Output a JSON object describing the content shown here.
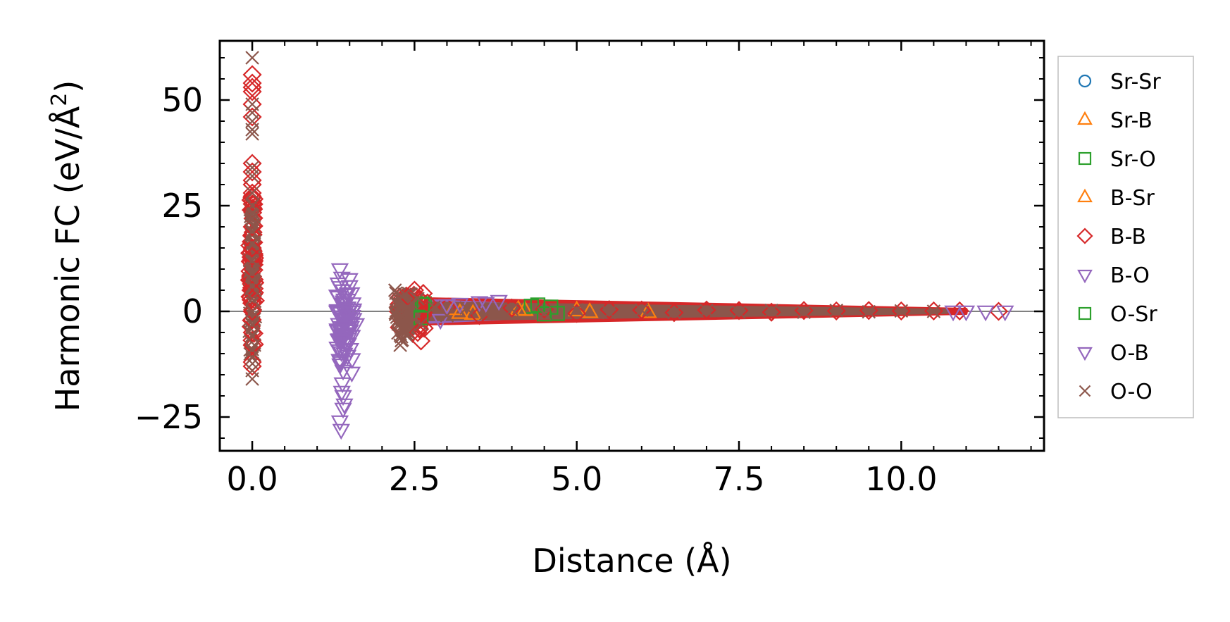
{
  "chart_data": {
    "type": "scatter",
    "title": "",
    "xlabel": "Distance (Å)",
    "ylabel_main": "Harmonic FC (eV/Å",
    "ylabel_sup": "2",
    "ylabel_close": ")",
    "xlim": [
      -0.5,
      12.2
    ],
    "ylim": [
      -33,
      64
    ],
    "xticks": [
      0.0,
      2.5,
      5.0,
      7.5,
      10.0
    ],
    "xtick_labels": [
      "0.0",
      "2.5",
      "5.0",
      "7.5",
      "10.0"
    ],
    "yticks": [
      -25,
      0,
      25,
      50
    ],
    "ytick_labels": [
      "−25",
      "0",
      "25",
      "50"
    ],
    "x_minor_step": 0.5,
    "y_minor_step": 5,
    "zero_line": 0,
    "legend_position": "outside-right",
    "series": [
      {
        "name": "Sr-Sr",
        "marker": "circle",
        "color": "#1f77b4",
        "points": []
      },
      {
        "name": "Sr-B",
        "marker": "triangle-up",
        "color": "#ff7f0e",
        "points": [
          [
            3.1,
            0.5
          ],
          [
            3.4,
            -0.6
          ],
          [
            4.2,
            0.3
          ],
          [
            5.0,
            0.2
          ],
          [
            6.1,
            -0.2
          ]
        ]
      },
      {
        "name": "Sr-O",
        "marker": "square",
        "color": "#2ca02c",
        "points": [
          [
            2.6,
            -1.5
          ],
          [
            2.65,
            1.8
          ],
          [
            4.3,
            1.2
          ],
          [
            4.5,
            -0.6
          ],
          [
            4.6,
            1.0
          ]
        ]
      },
      {
        "name": "B-Sr",
        "marker": "triangle-up",
        "color": "#ff7f0e",
        "points": [
          [
            3.2,
            -0.4
          ],
          [
            4.1,
            0.4
          ],
          [
            5.2,
            -0.2
          ]
        ]
      },
      {
        "name": "B-B",
        "marker": "diamond",
        "color": "#d62728",
        "points": [
          [
            0,
            56
          ],
          [
            0,
            54
          ],
          [
            0,
            53
          ],
          [
            0,
            52
          ],
          [
            0,
            49
          ],
          [
            0,
            46
          ],
          [
            0,
            35
          ],
          [
            0,
            33
          ],
          [
            0,
            31
          ],
          [
            0,
            30
          ],
          [
            0,
            28
          ],
          [
            0,
            26
          ],
          [
            0,
            24
          ],
          [
            0,
            20
          ],
          [
            0,
            15
          ],
          [
            0,
            13
          ],
          [
            0,
            10
          ],
          [
            0,
            7
          ],
          [
            0,
            5
          ],
          [
            0,
            3
          ],
          [
            0,
            0
          ],
          [
            0,
            -2
          ],
          [
            0,
            -5
          ],
          [
            0,
            -8
          ],
          [
            0,
            -12
          ],
          [
            0,
            -13
          ],
          [
            2.4,
            3.5
          ],
          [
            2.5,
            5
          ],
          [
            2.55,
            -5
          ],
          [
            2.6,
            -7
          ],
          [
            2.65,
            -4
          ],
          [
            2.7,
            2
          ],
          [
            3.0,
            1
          ],
          [
            3.5,
            -1
          ],
          [
            4.0,
            0.8
          ],
          [
            4.5,
            0.5
          ],
          [
            5.0,
            -0.5
          ],
          [
            5.5,
            0.4
          ],
          [
            6.0,
            0.3
          ],
          [
            6.5,
            -0.3
          ],
          [
            7.0,
            0.3
          ],
          [
            7.5,
            0.2
          ],
          [
            8.0,
            -0.2
          ],
          [
            8.5,
            0.2
          ],
          [
            9.0,
            0.1
          ],
          [
            9.5,
            0.2
          ],
          [
            10.0,
            0.1
          ],
          [
            10.5,
            0.1
          ],
          [
            10.9,
            0.1
          ],
          [
            11.5,
            0
          ]
        ]
      },
      {
        "name": "B-O",
        "marker": "triangle-down",
        "color": "#9467bd",
        "points": [
          [
            1.35,
            10
          ],
          [
            1.38,
            8
          ],
          [
            1.4,
            5
          ],
          [
            1.42,
            2
          ],
          [
            1.45,
            -1
          ],
          [
            1.4,
            -4
          ],
          [
            1.38,
            -7
          ],
          [
            1.42,
            -10
          ],
          [
            1.4,
            -14
          ],
          [
            1.38,
            -19
          ],
          [
            1.4,
            -20
          ],
          [
            1.42,
            -22
          ],
          [
            1.4,
            -23
          ],
          [
            1.35,
            -26
          ],
          [
            1.37,
            -28
          ],
          [
            1.5,
            6
          ],
          [
            1.55,
            0
          ],
          [
            1.6,
            -3
          ],
          [
            3.0,
            1.5
          ],
          [
            3.5,
            2.2
          ],
          [
            3.8,
            2.5
          ],
          [
            2.9,
            -2
          ],
          [
            11.0,
            0
          ],
          [
            11.3,
            0
          ],
          [
            11.6,
            0
          ],
          [
            10.8,
            0
          ]
        ]
      },
      {
        "name": "O-Sr",
        "marker": "square",
        "color": "#2ca02c",
        "points": [
          [
            2.62,
            1.5
          ],
          [
            4.4,
            1.5
          ],
          [
            4.7,
            -0.5
          ]
        ]
      },
      {
        "name": "O-B",
        "marker": "triangle-down",
        "color": "#9467bd",
        "points": [
          [
            1.36,
            -12
          ],
          [
            1.44,
            4
          ],
          [
            1.39,
            -17
          ],
          [
            3.2,
            1.8
          ],
          [
            3.6,
            2
          ]
        ]
      },
      {
        "name": "O-O",
        "marker": "x",
        "color": "#8c564b",
        "points": [
          [
            0,
            60
          ],
          [
            0,
            49
          ],
          [
            0,
            47
          ],
          [
            0,
            45
          ],
          [
            0,
            43
          ],
          [
            0,
            42
          ],
          [
            0,
            34
          ],
          [
            0,
            32
          ],
          [
            0,
            28
          ],
          [
            0,
            25
          ],
          [
            0,
            22
          ],
          [
            0,
            19
          ],
          [
            0,
            16
          ],
          [
            0,
            12
          ],
          [
            0,
            9
          ],
          [
            0,
            6
          ],
          [
            0,
            3
          ],
          [
            0,
            0
          ],
          [
            0,
            -3
          ],
          [
            0,
            -6
          ],
          [
            0,
            -9
          ],
          [
            0,
            -11
          ],
          [
            0,
            -14
          ],
          [
            0,
            -16
          ],
          [
            2.2,
            5
          ],
          [
            2.25,
            3
          ],
          [
            2.3,
            0
          ],
          [
            2.25,
            -3
          ],
          [
            2.3,
            -6
          ],
          [
            2.28,
            -8
          ],
          [
            2.35,
            4
          ],
          [
            2.4,
            -5
          ],
          [
            2.45,
            2
          ],
          [
            2.5,
            -2
          ],
          [
            2.55,
            3
          ],
          [
            2.6,
            -3
          ],
          [
            2.8,
            1
          ],
          [
            3.0,
            -1
          ],
          [
            3.3,
            0.8
          ],
          [
            3.6,
            -0.6
          ],
          [
            4.0,
            0.5
          ],
          [
            4.5,
            -0.5
          ],
          [
            5.0,
            0.4
          ],
          [
            5.5,
            -0.3
          ],
          [
            6.0,
            0.3
          ],
          [
            6.5,
            -0.3
          ],
          [
            7.0,
            0.2
          ],
          [
            7.5,
            -0.2
          ],
          [
            8.0,
            0.2
          ],
          [
            8.5,
            -0.2
          ],
          [
            9.0,
            0.2
          ],
          [
            9.5,
            -0.1
          ],
          [
            10.0,
            0.1
          ],
          [
            10.5,
            0
          ]
        ]
      }
    ],
    "bands": [
      {
        "color": "#d62728",
        "x_start": 2.7,
        "x_end": 11.0,
        "half_height_start": 3.0,
        "half_height_end": 0.5
      },
      {
        "color": "#9467bd",
        "x_start": 2.7,
        "x_end": 4.2,
        "half_height_start": 2.6,
        "half_height_end": 1.5
      },
      {
        "color": "#8c564b",
        "x_start": 2.7,
        "x_end": 10.7,
        "half_height_start": 2.0,
        "half_height_end": 0.3
      }
    ],
    "clusters": [
      {
        "color": "#d62728",
        "marker": "diamond",
        "x": 0.0,
        "y_min": -13,
        "y_max": 35,
        "spread_x": 0.05
      },
      {
        "color": "#8c564b",
        "marker": "x",
        "x": 0.0,
        "y_min": -16,
        "y_max": 33,
        "spread_x": 0.05
      },
      {
        "color": "#9467bd",
        "marker": "triangle-down",
        "x": 1.43,
        "y_min": -16,
        "y_max": 10,
        "spread_x": 0.14
      },
      {
        "color": "#d62728",
        "marker": "diamond",
        "x": 2.45,
        "y_min": -6,
        "y_max": 5,
        "spread_x": 0.2
      },
      {
        "color": "#8c564b",
        "marker": "x",
        "x": 2.35,
        "y_min": -8,
        "y_max": 5,
        "spread_x": 0.15
      }
    ]
  }
}
